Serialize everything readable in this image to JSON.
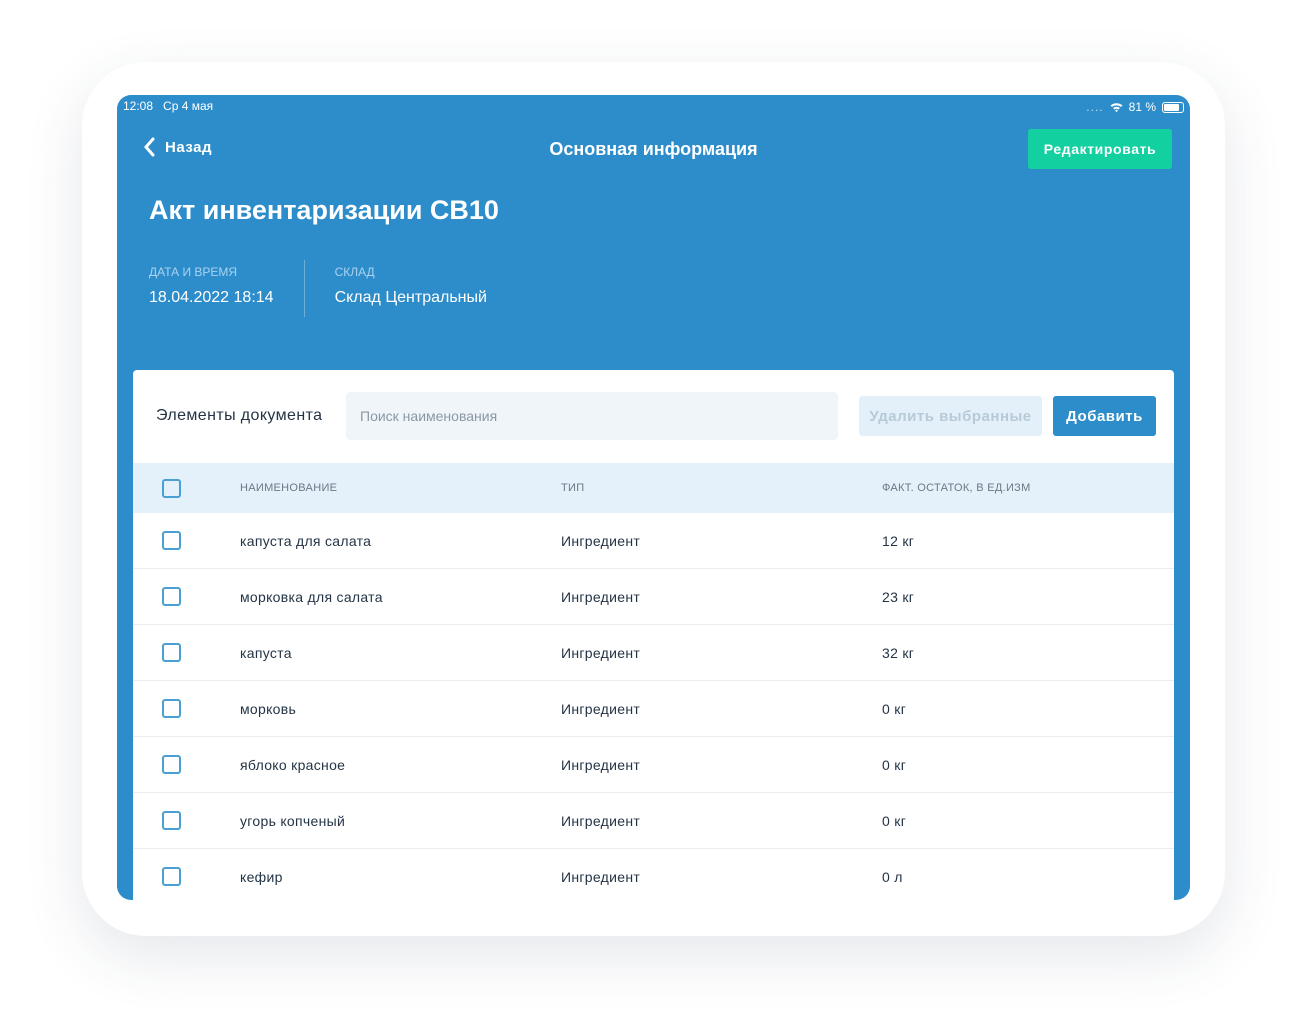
{
  "status": {
    "time": "12:08",
    "date": "Ср 4 мая",
    "battery": "81 %",
    "battery_level": 81
  },
  "nav": {
    "back_label": "Назад",
    "title": "Основная информация",
    "edit_label": "Редактировать"
  },
  "doc": {
    "title": "Акт инвентаризации СВ10",
    "date_label": "ДАТА И ВРЕМЯ",
    "date_value": "18.04.2022 18:14",
    "warehouse_label": "СКЛАД",
    "warehouse_value": "Склад Центральный"
  },
  "items": {
    "title": "Элементы документа",
    "search_placeholder": "Поиск наименования",
    "delete_label": "Удалить выбранные",
    "add_label": "Добавить",
    "columns": [
      "Наименование",
      "Тип",
      "Факт. остаток, в ед.изм"
    ],
    "rows": [
      {
        "name": "капуста для салата",
        "type": "Ингредиент",
        "qty": "12 кг"
      },
      {
        "name": "морковка для салата",
        "type": "Ингредиент",
        "qty": "23 кг"
      },
      {
        "name": "капуста",
        "type": "Ингредиент",
        "qty": "32 кг"
      },
      {
        "name": "морковь",
        "type": "Ингредиент",
        "qty": "0 кг"
      },
      {
        "name": "яблоко красное",
        "type": "Ингредиент",
        "qty": "0 кг"
      },
      {
        "name": "угорь копченый",
        "type": "Ингредиент",
        "qty": "0 кг"
      },
      {
        "name": "кефир",
        "type": "Ингредиент",
        "qty": "0 л"
      }
    ]
  },
  "colors": {
    "primary": "#2d8dcb",
    "accent": "#12d09f"
  }
}
